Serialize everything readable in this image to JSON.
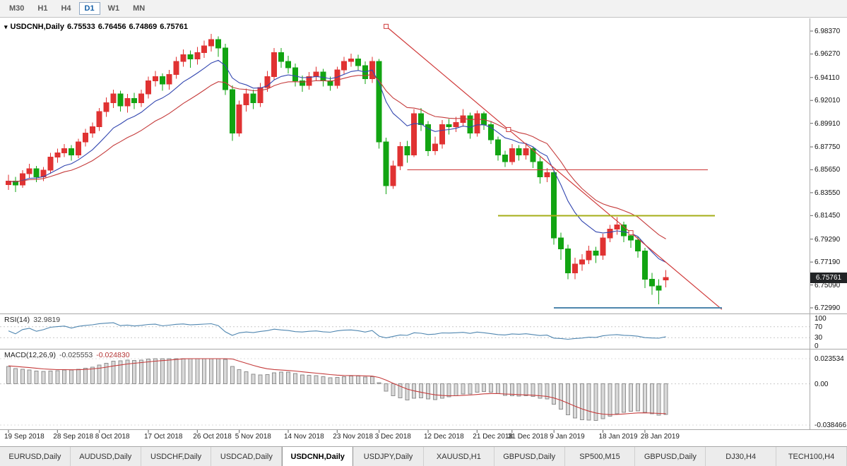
{
  "toolbar": {
    "timeframes": [
      {
        "label": "M30",
        "active": false
      },
      {
        "label": "H1",
        "active": false
      },
      {
        "label": "H4",
        "active": false
      },
      {
        "label": "D1",
        "active": true
      },
      {
        "label": "W1",
        "active": false
      },
      {
        "label": "MN",
        "active": false
      }
    ]
  },
  "chart": {
    "title": {
      "marker_icon": "▾",
      "symbol": "USDCNH,Daily",
      "open": "6.75533",
      "high": "6.76456",
      "low": "6.74869",
      "close": "6.75761"
    },
    "current_price": "6.75761",
    "price_scale": [
      "6.98370",
      "6.96270",
      "6.94110",
      "6.92010",
      "6.89910",
      "6.87750",
      "6.85650",
      "6.83550",
      "6.81450",
      "6.79290",
      "6.77190",
      "6.75090",
      "6.72990"
    ]
  },
  "chart_data": {
    "type": "candlestick",
    "symbol": "USDCNH",
    "timeframe": "Daily",
    "price_range": {
      "top": 6.9837,
      "bottom": 6.7299
    },
    "x_axis_labels": [
      {
        "i": 0,
        "label": "19 Sep 2018"
      },
      {
        "i": 7,
        "label": "28 Sep 2018"
      },
      {
        "i": 13,
        "label": "8 Oct 2018"
      },
      {
        "i": 20,
        "label": "17 Oct 2018"
      },
      {
        "i": 27,
        "label": "26 Oct 2018"
      },
      {
        "i": 33,
        "label": "5 Nov 2018"
      },
      {
        "i": 40,
        "label": "14 Nov 2018"
      },
      {
        "i": 47,
        "label": "23 Nov 2018"
      },
      {
        "i": 53,
        "label": "3 Dec 2018"
      },
      {
        "i": 60,
        "label": "12 Dec 2018"
      },
      {
        "i": 67,
        "label": "21 Dec 2018"
      },
      {
        "i": 72,
        "label": "31 Dec 2018"
      },
      {
        "i": 78,
        "label": "9 Jan 2019"
      },
      {
        "i": 85,
        "label": "18 Jan 2019"
      },
      {
        "i": 91,
        "label": "28 Jan 2019"
      }
    ],
    "candles": [
      [
        6.843,
        6.852,
        6.838,
        6.846
      ],
      [
        6.846,
        6.85,
        6.836,
        6.8425
      ],
      [
        6.8425,
        6.856,
        6.84,
        6.853
      ],
      [
        6.853,
        6.862,
        6.849,
        6.8575
      ],
      [
        6.8575,
        6.86,
        6.845,
        6.85
      ],
      [
        6.85,
        6.859,
        6.846,
        6.856
      ],
      [
        6.856,
        6.872,
        6.853,
        6.868
      ],
      [
        6.868,
        6.876,
        6.863,
        6.872
      ],
      [
        6.872,
        6.88,
        6.868,
        6.876
      ],
      [
        6.876,
        6.879,
        6.865,
        6.87
      ],
      [
        6.87,
        6.885,
        6.867,
        6.882
      ],
      [
        6.882,
        6.894,
        6.878,
        6.89
      ],
      [
        6.89,
        6.9,
        6.886,
        6.896
      ],
      [
        6.896,
        6.913,
        6.892,
        6.91
      ],
      [
        6.91,
        6.923,
        6.905,
        6.918
      ],
      [
        6.918,
        6.93,
        6.913,
        6.926
      ],
      [
        6.926,
        6.929,
        6.91,
        6.915
      ],
      [
        6.915,
        6.926,
        6.909,
        6.922
      ],
      [
        6.922,
        6.927,
        6.912,
        6.918
      ],
      [
        6.918,
        6.93,
        6.914,
        6.926
      ],
      [
        6.926,
        6.942,
        6.922,
        6.938
      ],
      [
        6.938,
        6.947,
        6.933,
        6.942
      ],
      [
        6.942,
        6.945,
        6.929,
        6.935
      ],
      [
        6.935,
        6.948,
        6.93,
        6.944
      ],
      [
        6.944,
        6.96,
        6.94,
        6.956
      ],
      [
        6.956,
        6.967,
        6.951,
        6.962
      ],
      [
        6.962,
        6.966,
        6.95,
        6.958
      ],
      [
        6.958,
        6.969,
        6.953,
        6.964
      ],
      [
        6.964,
        6.975,
        6.959,
        6.97
      ],
      [
        6.97,
        6.981,
        6.965,
        6.976
      ],
      [
        6.976,
        6.979,
        6.96,
        6.968
      ],
      [
        6.968,
        6.972,
        6.925,
        6.93
      ],
      [
        6.93,
        6.934,
        6.883,
        6.89
      ],
      [
        6.89,
        6.92,
        6.887,
        6.916
      ],
      [
        6.916,
        6.931,
        6.91,
        6.926
      ],
      [
        6.926,
        6.93,
        6.912,
        6.918
      ],
      [
        6.918,
        6.936,
        6.914,
        6.932
      ],
      [
        6.932,
        6.947,
        6.928,
        6.942
      ],
      [
        6.942,
        6.968,
        6.939,
        6.964
      ],
      [
        6.964,
        6.968,
        6.95,
        6.956
      ],
      [
        6.956,
        6.961,
        6.945,
        6.95
      ],
      [
        6.95,
        6.954,
        6.933,
        6.938
      ],
      [
        6.938,
        6.943,
        6.928,
        6.934
      ],
      [
        6.934,
        6.946,
        6.93,
        6.942
      ],
      [
        6.942,
        6.951,
        6.938,
        6.946
      ],
      [
        6.946,
        6.949,
        6.933,
        6.938
      ],
      [
        6.938,
        6.942,
        6.929,
        6.934
      ],
      [
        6.934,
        6.951,
        6.931,
        6.948
      ],
      [
        6.948,
        6.96,
        6.944,
        6.956
      ],
      [
        6.956,
        6.963,
        6.951,
        6.958
      ],
      [
        6.958,
        6.962,
        6.947,
        6.952
      ],
      [
        6.952,
        6.956,
        6.935,
        6.94
      ],
      [
        6.94,
        6.96,
        6.936,
        6.956
      ],
      [
        6.956,
        6.958,
        6.876,
        6.882
      ],
      [
        6.882,
        6.886,
        6.834,
        6.842
      ],
      [
        6.842,
        6.865,
        6.839,
        6.86
      ],
      [
        6.86,
        6.882,
        6.856,
        6.878
      ],
      [
        6.878,
        6.883,
        6.863,
        6.87
      ],
      [
        6.87,
        6.912,
        6.868,
        6.908
      ],
      [
        6.908,
        6.913,
        6.892,
        6.898
      ],
      [
        6.898,
        6.901,
        6.869,
        6.874
      ],
      [
        6.874,
        6.887,
        6.87,
        6.88
      ],
      [
        6.88,
        6.902,
        6.876,
        6.898
      ],
      [
        6.898,
        6.903,
        6.889,
        6.896
      ],
      [
        6.896,
        6.905,
        6.891,
        6.9
      ],
      [
        6.9,
        6.912,
        6.896,
        6.906
      ],
      [
        6.906,
        6.909,
        6.885,
        6.89
      ],
      [
        6.89,
        6.911,
        6.887,
        6.908
      ],
      [
        6.908,
        6.91,
        6.893,
        6.898
      ],
      [
        6.898,
        6.901,
        6.88,
        6.884
      ],
      [
        6.884,
        6.887,
        6.865,
        6.87
      ],
      [
        6.87,
        6.874,
        6.859,
        6.864
      ],
      [
        6.864,
        6.88,
        6.861,
        6.876
      ],
      [
        6.876,
        6.879,
        6.865,
        6.87
      ],
      [
        6.87,
        6.881,
        6.866,
        6.876
      ],
      [
        6.876,
        6.878,
        6.858,
        6.864
      ],
      [
        6.864,
        6.868,
        6.844,
        6.85
      ],
      [
        6.85,
        6.858,
        6.845,
        6.854
      ],
      [
        6.854,
        6.856,
        6.788,
        6.794
      ],
      [
        6.794,
        6.799,
        6.774,
        6.784
      ],
      [
        6.784,
        6.788,
        6.756,
        6.762
      ],
      [
        6.762,
        6.776,
        6.756,
        6.77
      ],
      [
        6.77,
        6.779,
        6.764,
        6.774
      ],
      [
        6.774,
        6.787,
        6.77,
        6.782
      ],
      [
        6.782,
        6.786,
        6.771,
        6.778
      ],
      [
        6.778,
        6.798,
        6.774,
        6.794
      ],
      [
        6.794,
        6.806,
        6.79,
        6.802
      ],
      [
        6.802,
        6.813,
        6.797,
        6.806
      ],
      [
        6.806,
        6.809,
        6.79,
        6.796
      ],
      [
        6.796,
        6.8,
        6.785,
        6.792
      ],
      [
        6.792,
        6.795,
        6.776,
        6.782
      ],
      [
        6.782,
        6.785,
        6.748,
        6.756
      ],
      [
        6.756,
        6.762,
        6.742,
        6.75
      ],
      [
        6.75,
        6.756,
        6.733,
        6.746
      ],
      [
        6.75533,
        6.76456,
        6.74869,
        6.75761
      ]
    ],
    "moving_averages": [
      {
        "period": 10,
        "method": "ema",
        "color": "#3347b0"
      },
      {
        "period": 20,
        "method": "ema",
        "color": "#c53b3b"
      }
    ],
    "trendline": {
      "from_index": 54,
      "from_price": 6.988,
      "to_index": 102,
      "to_price": 6.7285,
      "color": "#d03a3a",
      "handles": [
        54,
        71.5,
        89
      ]
    },
    "hlines": [
      {
        "name": "hline-resistance-red",
        "price": 6.8565,
        "from_index": 57,
        "to_index": 100,
        "color": "#cc3333",
        "width": 1
      },
      {
        "name": "hline-support-olive",
        "price": 6.8145,
        "from_index": 70,
        "to_index": 101,
        "color": "#a4ae17",
        "width": 2
      },
      {
        "name": "hline-support-blue",
        "price": 6.7299,
        "from_index": 78,
        "to_index": 102,
        "color": "#4e86ad",
        "width": 2
      }
    ],
    "indicators": {
      "rsi": {
        "label": "RSI(14)",
        "period": 14,
        "value": "32.9819",
        "levels": [
          100,
          70,
          30,
          0
        ]
      },
      "macd": {
        "label": "MACD(12,26,9)",
        "fast": 12,
        "slow": 26,
        "signal": 9,
        "macd_value": "-0.025553",
        "signal_value": "-0.024830",
        "scale_top": "0.023534",
        "scale_zero": "0.00",
        "scale_bottom": "-0.038466"
      }
    },
    "colors": {
      "bull": "#e03232",
      "bear": "#12a412",
      "rsi": "#4f86b0",
      "macd_hist_fill": "#d9d9d9",
      "macd_hist_border": "#8f8f8f",
      "macd_signal": "#c53b3b"
    }
  },
  "bottom_tabs": [
    {
      "label": "EURUSD,Daily",
      "active": false
    },
    {
      "label": "AUDUSD,Daily",
      "active": false
    },
    {
      "label": "USDCHF,Daily",
      "active": false
    },
    {
      "label": "USDCAD,Daily",
      "active": false
    },
    {
      "label": "USDCNH,Daily",
      "active": true
    },
    {
      "label": "USDJPY,Daily",
      "active": false
    },
    {
      "label": "XAUUSD,H1",
      "active": false
    },
    {
      "label": "GBPUSD,Daily",
      "active": false
    },
    {
      "label": "SP500,M15",
      "active": false
    },
    {
      "label": "GBPUSD,Daily",
      "active": false
    },
    {
      "label": "DJ30,H4",
      "active": false
    },
    {
      "label": "TECH100,H4",
      "active": false
    }
  ]
}
